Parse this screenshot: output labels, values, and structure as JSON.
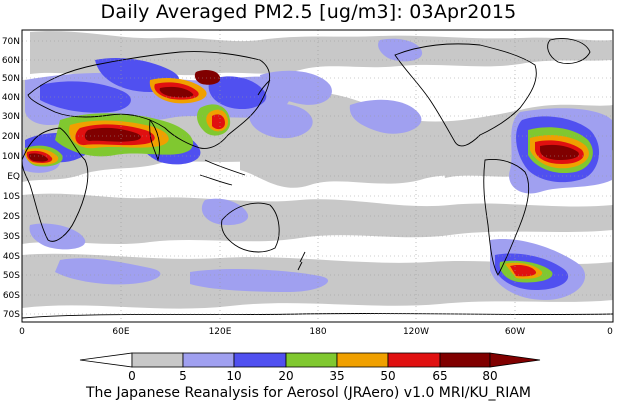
{
  "title": "Daily Averaged PM2.5 [ug/m3]: 03Apr2015",
  "footer": "The Japanese Reanalysis for Aerosol (JRAero) v1.0 MRI/KU_RIAM",
  "map": {
    "lat_labels": [
      "70N",
      "60N",
      "50N",
      "40N",
      "30N",
      "20N",
      "10N",
      "EQ",
      "10S",
      "20S",
      "30S",
      "40S",
      "50S",
      "60S",
      "70S"
    ],
    "lon_labels": [
      "0",
      "60E",
      "120E",
      "180",
      "120W",
      "60W",
      "0"
    ]
  },
  "colorbar": {
    "levels": [
      "0",
      "5",
      "10",
      "20",
      "35",
      "50",
      "65",
      "80"
    ],
    "colors": [
      "#ffffff",
      "#c8c8c8",
      "#a0a0f0",
      "#5050f0",
      "#80c830",
      "#f0a000",
      "#e01010",
      "#800000"
    ]
  },
  "colors": {
    "ocean_bg": "#ffffff",
    "coastline": "#000000",
    "grid": "#9a9a9a"
  }
}
